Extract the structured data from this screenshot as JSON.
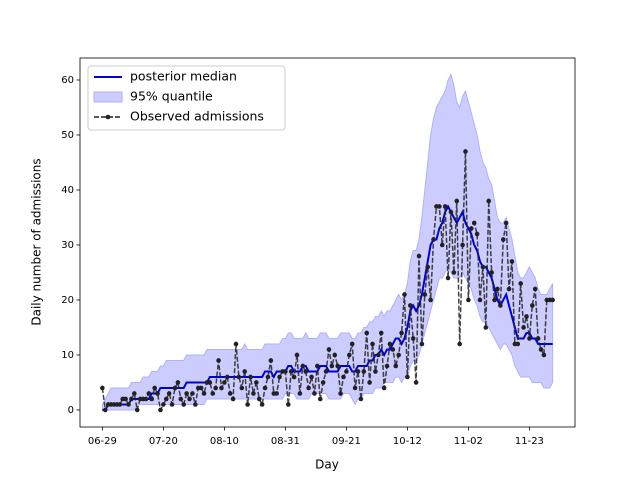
{
  "chart_data": {
    "type": "line_band",
    "x_label": "Day",
    "y_label": "Daily number of admissions",
    "x": [
      "06-29",
      "06-30",
      "07-01",
      "07-02",
      "07-03",
      "07-04",
      "07-05",
      "07-06",
      "07-07",
      "07-08",
      "07-09",
      "07-10",
      "07-11",
      "07-12",
      "07-13",
      "07-14",
      "07-15",
      "07-16",
      "07-17",
      "07-18",
      "07-19",
      "07-20",
      "07-21",
      "07-22",
      "07-23",
      "07-24",
      "07-25",
      "07-26",
      "07-27",
      "07-28",
      "07-29",
      "07-30",
      "07-31",
      "08-01",
      "08-02",
      "08-03",
      "08-04",
      "08-05",
      "08-06",
      "08-07",
      "08-08",
      "08-09",
      "08-10",
      "08-11",
      "08-12",
      "08-13",
      "08-14",
      "08-15",
      "08-16",
      "08-17",
      "08-18",
      "08-19",
      "08-20",
      "08-21",
      "08-22",
      "08-23",
      "08-24",
      "08-25",
      "08-26",
      "08-27",
      "08-28",
      "08-29",
      "08-30",
      "08-31",
      "09-01",
      "09-02",
      "09-03",
      "09-04",
      "09-05",
      "09-06",
      "09-07",
      "09-08",
      "09-09",
      "09-10",
      "09-11",
      "09-12",
      "09-13",
      "09-14",
      "09-15",
      "09-16",
      "09-17",
      "09-18",
      "09-19",
      "09-20",
      "09-21",
      "09-22",
      "09-23",
      "09-24",
      "09-25",
      "09-26",
      "09-27",
      "09-28",
      "09-29",
      "09-30",
      "10-01",
      "10-02",
      "10-03",
      "10-04",
      "10-05",
      "10-06",
      "10-07",
      "10-08",
      "10-09",
      "10-10",
      "10-11",
      "10-12",
      "10-13",
      "10-14",
      "10-15",
      "10-16",
      "10-17",
      "10-18",
      "10-19",
      "10-20",
      "10-21",
      "10-22",
      "10-23",
      "10-24",
      "10-25",
      "10-26",
      "10-27",
      "10-28",
      "10-29",
      "10-30",
      "10-31",
      "11-01",
      "11-02",
      "11-03",
      "11-04",
      "11-05",
      "11-06",
      "11-07",
      "11-08",
      "11-09",
      "11-10",
      "11-11",
      "11-12",
      "11-13",
      "11-14",
      "11-15",
      "11-16",
      "11-17",
      "11-18",
      "11-19",
      "11-20",
      "11-21",
      "11-22",
      "11-23",
      "11-24",
      "11-25",
      "11-26",
      "11-27",
      "11-28",
      "11-29",
      "11-30",
      "12-01"
    ],
    "xticks": [
      "06-29",
      "07-20",
      "08-10",
      "08-31",
      "09-21",
      "10-12",
      "11-02",
      "11-23"
    ],
    "ylim": [
      -3.1,
      64
    ],
    "yticks": [
      0,
      10,
      20,
      30,
      40,
      50,
      60
    ],
    "legend": "upper left",
    "series": [
      {
        "name": "posterior median",
        "color": "#0000dd",
        "values": [
          0,
          0,
          1,
          1,
          1,
          1,
          1,
          1,
          1,
          1,
          2,
          2,
          2,
          2,
          2,
          2,
          2,
          3,
          3,
          3,
          4,
          4,
          4,
          4,
          4,
          4,
          4,
          4,
          4,
          5,
          5,
          5,
          5,
          5,
          5,
          5,
          5,
          6,
          6,
          6,
          6,
          6,
          6,
          6,
          6,
          6,
          6,
          6,
          6,
          6,
          6,
          6,
          6,
          6,
          6,
          6,
          7,
          7,
          7,
          6,
          7,
          7,
          7,
          7,
          8,
          8,
          7,
          7,
          7,
          8,
          8,
          7,
          7,
          7,
          7,
          8,
          8,
          8,
          7,
          7,
          7,
          7,
          8,
          8,
          8,
          8,
          7,
          7,
          8,
          8,
          8,
          8,
          9,
          9,
          10,
          10,
          11,
          10,
          11,
          11,
          12,
          13,
          13,
          12,
          13,
          15,
          18,
          19,
          18,
          19,
          21,
          24,
          27,
          30,
          31,
          31,
          33,
          34,
          36,
          37,
          36,
          35,
          34,
          35,
          36,
          34,
          33,
          32,
          30,
          29,
          27,
          26,
          26,
          25,
          24,
          22,
          20,
          19,
          20,
          21,
          19,
          17,
          15,
          13,
          13,
          13,
          14,
          14,
          13,
          13,
          12,
          12,
          12,
          12,
          12,
          12
        ]
      },
      {
        "name": "95% quantile",
        "color": "#b0b0ff",
        "lower": [
          0,
          0,
          0,
          0,
          0,
          0,
          0,
          0,
          0,
          0,
          0,
          0,
          1,
          1,
          1,
          1,
          1,
          1,
          1,
          1,
          1,
          1,
          1,
          1,
          1,
          1,
          1,
          1,
          1,
          1,
          1,
          1,
          1,
          1,
          1,
          1,
          2,
          2,
          2,
          2,
          2,
          2,
          2,
          2,
          2,
          2,
          2,
          2,
          2,
          2,
          2,
          2,
          2,
          2,
          2,
          2,
          2,
          2,
          2,
          2,
          2,
          2,
          2,
          3,
          3,
          3,
          3,
          2,
          2,
          2,
          2,
          2,
          3,
          3,
          3,
          3,
          3,
          3,
          2,
          2,
          2,
          2,
          2,
          3,
          3,
          3,
          2,
          1,
          2,
          2,
          3,
          3,
          3,
          3,
          4,
          4,
          4,
          5,
          5,
          5,
          5,
          6,
          6,
          5,
          6,
          6,
          8,
          9,
          9,
          10,
          12,
          14,
          16,
          18,
          20,
          22,
          24,
          24,
          25,
          26,
          25,
          24,
          24,
          24,
          25,
          24,
          23,
          22,
          20,
          19,
          17,
          16,
          16,
          15,
          14,
          13,
          12,
          11,
          12,
          12,
          11,
          10,
          8,
          7,
          6,
          6,
          6,
          6,
          5,
          5,
          5,
          5,
          4,
          4,
          4,
          5
        ],
        "upper": [
          1,
          2,
          3,
          4,
          4,
          4,
          4,
          4,
          4,
          4,
          5,
          5,
          5,
          5,
          6,
          6,
          6,
          7,
          7,
          7,
          8,
          8,
          9,
          9,
          9,
          9,
          9,
          9,
          9,
          10,
          10,
          10,
          10,
          10,
          10,
          10,
          11,
          11,
          11,
          11,
          11,
          11,
          11,
          11,
          11,
          11,
          11,
          11,
          11,
          12,
          11,
          11,
          11,
          11,
          11,
          11,
          12,
          12,
          12,
          12,
          12,
          12,
          13,
          13,
          14,
          14,
          13,
          13,
          13,
          13,
          14,
          13,
          13,
          13,
          13,
          14,
          14,
          14,
          13,
          13,
          13,
          13,
          14,
          14,
          14,
          14,
          13,
          13,
          14,
          14,
          15,
          15,
          16,
          16,
          17,
          17,
          18,
          17,
          18,
          18,
          19,
          20,
          21,
          20,
          21,
          23,
          27,
          29,
          29,
          31,
          35,
          40,
          45,
          50,
          53,
          55,
          56,
          57,
          58,
          60,
          61,
          59,
          56,
          55,
          57,
          58,
          56,
          54,
          52,
          50,
          47,
          45,
          44,
          42,
          41,
          38,
          35,
          34,
          34,
          35,
          33,
          31,
          28,
          25,
          24,
          24,
          25,
          26,
          25,
          24,
          22,
          21,
          21,
          21,
          22,
          23
        ]
      },
      {
        "name": "Observed admissions",
        "color": "#222222",
        "values": [
          4,
          0,
          1,
          1,
          1,
          1,
          1,
          2,
          2,
          1,
          2,
          3,
          0,
          2,
          2,
          2,
          3,
          2,
          4,
          3,
          0,
          1,
          2,
          3,
          1,
          4,
          5,
          2,
          1,
          3,
          2,
          3,
          1,
          4,
          4,
          3,
          5,
          5,
          3,
          4,
          9,
          4,
          5,
          6,
          3,
          2,
          12,
          6,
          4,
          7,
          1,
          6,
          3,
          5,
          2,
          1,
          4,
          6,
          9,
          3,
          3,
          6,
          7,
          7,
          1,
          7,
          6,
          10,
          3,
          8,
          7,
          4,
          6,
          3,
          8,
          2,
          5,
          7,
          11,
          8,
          10,
          8,
          3,
          6,
          7,
          10,
          12,
          4,
          7,
          2,
          7,
          14,
          5,
          12,
          7,
          10,
          14,
          4,
          8,
          12,
          11,
          8,
          10,
          14,
          21,
          6,
          19,
          13,
          5,
          28,
          12,
          21,
          26,
          20,
          31,
          37,
          37,
          30,
          37,
          24,
          36,
          25,
          38,
          12,
          30,
          47,
          20,
          33,
          34,
          32,
          20,
          26,
          15,
          38,
          25,
          20,
          22,
          19,
          31,
          34,
          22,
          27,
          12,
          12,
          23,
          15,
          17,
          13,
          19,
          22,
          13,
          11,
          10,
          20,
          20,
          20
        ]
      }
    ]
  }
}
